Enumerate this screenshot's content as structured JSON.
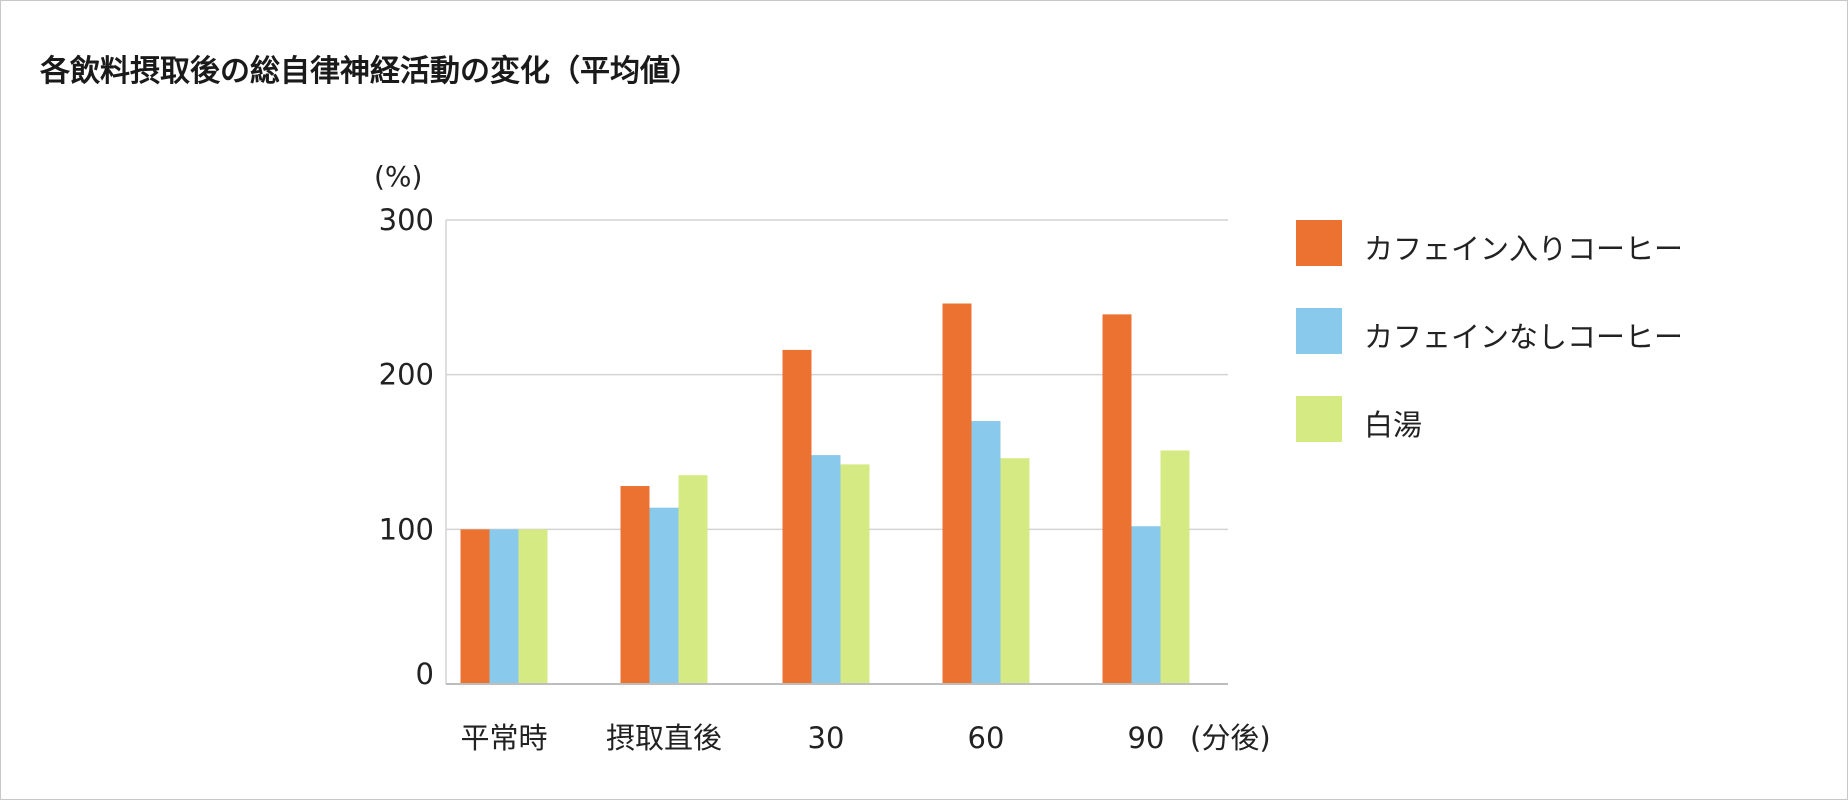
{
  "title": "各飲料摂取後の総自律神経活動の変化（平均値）",
  "colors": {
    "grid": "#d4d4d4",
    "axis": "#bdbdbd",
    "text": "#222222"
  },
  "chart_data": {
    "type": "bar",
    "title": "各飲料摂取後の総自律神経活動の変化（平均値）",
    "unit_label": "(%)",
    "x_unit_label": "(分後)",
    "categories": [
      "平常時",
      "摂取直後",
      "30",
      "60",
      "90"
    ],
    "ylim": [
      0,
      300
    ],
    "yticks": [
      0,
      100,
      200,
      300
    ],
    "grid": true,
    "legend_position": "right",
    "series": [
      {
        "name": "カフェイン入りコーヒー",
        "color": "#ec7232",
        "values": [
          100,
          128,
          216,
          246,
          239
        ]
      },
      {
        "name": "カフェインなしコーヒー",
        "color": "#89c9ec",
        "values": [
          100,
          114,
          148,
          170,
          102
        ]
      },
      {
        "name": "白湯",
        "color": "#d6ea84",
        "values": [
          100,
          135,
          142,
          146,
          151
        ]
      }
    ]
  }
}
